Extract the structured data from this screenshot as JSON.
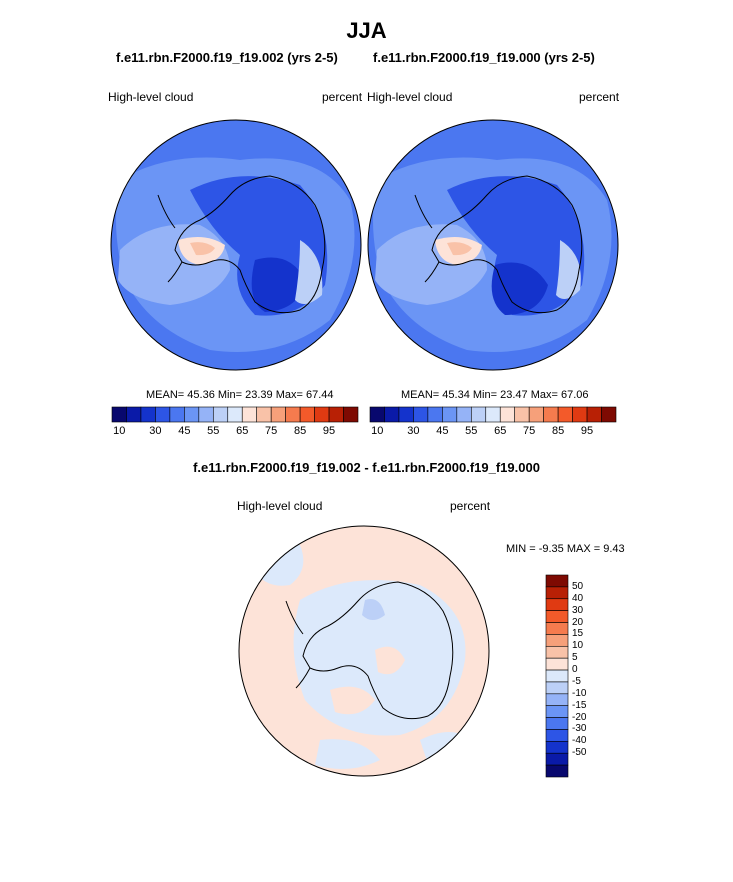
{
  "title": "JJA",
  "panel_left": {
    "subtitle": "f.e11.rbn.F2000.f19_f19.002 (yrs 2-5)",
    "variable": "High-level cloud",
    "units": "percent",
    "stats": {
      "mean_label": "MEAN=",
      "mean": "45.36",
      "min_label": "Min=",
      "min": "23.39",
      "max_label": "Max=",
      "max": "67.44"
    }
  },
  "panel_right": {
    "subtitle": "f.e11.rbn.F2000.f19_f19.000 (yrs 2-5)",
    "variable": "High-level cloud",
    "units": "percent",
    "stats": {
      "mean_label": "MEAN=",
      "mean": "45.34",
      "min_label": "Min=",
      "min": "23.47",
      "max_label": "Max=",
      "max": "67.06"
    }
  },
  "panel_diff": {
    "subtitle": "f.e11.rbn.F2000.f19_f19.002 - f.e11.rbn.F2000.f19_f19.000",
    "variable": "High-level cloud",
    "units": "percent",
    "minmax": "MIN =  -9.35 MAX =   9.43"
  },
  "colorbar_abs": {
    "colors": [
      "#08086e",
      "#0a1aa8",
      "#1433cc",
      "#2d55e6",
      "#4b77f0",
      "#6b95f5",
      "#95b3f7",
      "#bcd0f7",
      "#dce9fb",
      "#fde3d8",
      "#f9c2a8",
      "#f6a07a",
      "#f57b4e",
      "#f35a2a",
      "#e03a12",
      "#b82005",
      "#7e0a02"
    ],
    "tick_labels": [
      "10",
      "30",
      "45",
      "55",
      "65",
      "75",
      "85",
      "95"
    ]
  },
  "colorbar_diff": {
    "colors": [
      "#7e0a02",
      "#b82005",
      "#e03a12",
      "#f35a2a",
      "#f57b4e",
      "#f6a07a",
      "#f9c2a8",
      "#fde3d8",
      "#dce9fb",
      "#bcd0f7",
      "#95b3f7",
      "#6b95f5",
      "#4b77f0",
      "#2d55e6",
      "#1433cc",
      "#0a1aa8",
      "#08086e"
    ],
    "tick_labels": [
      "50",
      "40",
      "30",
      "20",
      "15",
      "10",
      "5",
      "0",
      "-5",
      "-10",
      "-15",
      "-20",
      "-30",
      "-40",
      "-50"
    ]
  },
  "map_colors": {
    "outer": "#4b77f0",
    "mid": "#6b95f5",
    "light": "#95b3f7",
    "pale": "#bcd0f7",
    "deep": "#2d55e6",
    "deeper": "#1433cc",
    "warm": "#f9c2a8",
    "peach": "#fde3d8",
    "diff_pos": "#fde3d8",
    "diff_neg": "#dce9fb",
    "diff_neg2": "#bcd0f7",
    "coast": "#000000"
  }
}
